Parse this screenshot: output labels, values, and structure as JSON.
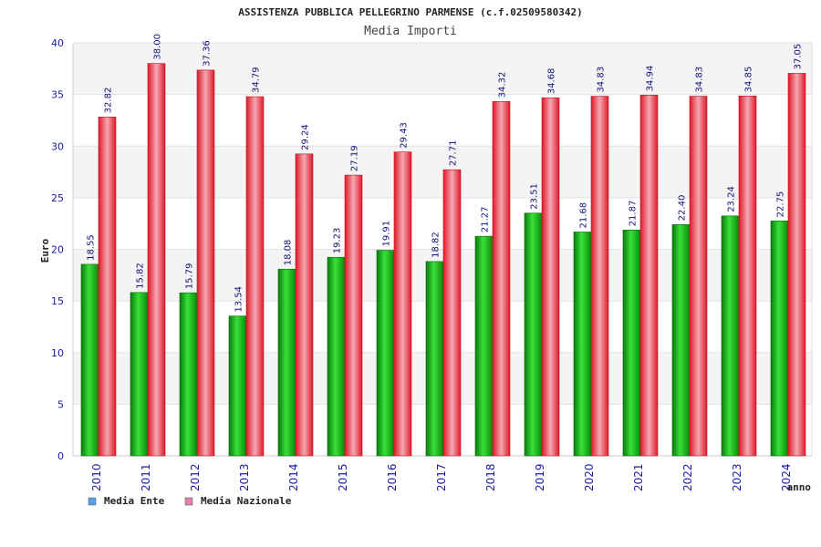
{
  "chart_data": {
    "type": "bar",
    "title": "ASSISTENZA PUBBLICA PELLEGRINO PARMENSE (c.f.02509580342)",
    "subtitle": "Media Importi",
    "xlabel": "anno",
    "ylabel": "Euro",
    "ylim": [
      0,
      40
    ],
    "yticks": [
      0,
      5,
      10,
      15,
      20,
      25,
      30,
      35,
      40
    ],
    "grid": true,
    "legend_position": "bottom-left",
    "categories": [
      "2010",
      "2011",
      "2012",
      "2013",
      "2014",
      "2015",
      "2016",
      "2017",
      "2018",
      "2019",
      "2020",
      "2021",
      "2022",
      "2023",
      "2024"
    ],
    "series": [
      {
        "name": "Media Ente",
        "color": "#22c022",
        "legend_color": "#5aa0e6",
        "values": [
          18.55,
          15.82,
          15.79,
          13.54,
          18.08,
          19.23,
          19.91,
          18.82,
          21.27,
          23.51,
          21.68,
          21.87,
          22.4,
          23.24,
          22.75
        ],
        "labels": [
          "18.55",
          "15.82",
          "15.79",
          "13.54",
          "18.08",
          "19.23",
          "19.91",
          "18.82",
          "21.27",
          "23.51",
          "21.68",
          "21.87",
          "22.40",
          "23.24",
          "22.75"
        ]
      },
      {
        "name": "Media Nazionale",
        "color": "#e8283a",
        "legend_color": "#e07fb0",
        "values": [
          32.82,
          38.0,
          37.36,
          34.79,
          29.24,
          27.19,
          29.43,
          27.71,
          34.32,
          34.68,
          34.83,
          34.94,
          34.83,
          34.85,
          37.05
        ],
        "labels": [
          "32.82",
          "38.00",
          "37.36",
          "34.79",
          "29.24",
          "27.19",
          "29.43",
          "27.71",
          "34.32",
          "34.68",
          "34.83",
          "34.94",
          "34.83",
          "34.85",
          "37.05"
        ]
      }
    ]
  }
}
